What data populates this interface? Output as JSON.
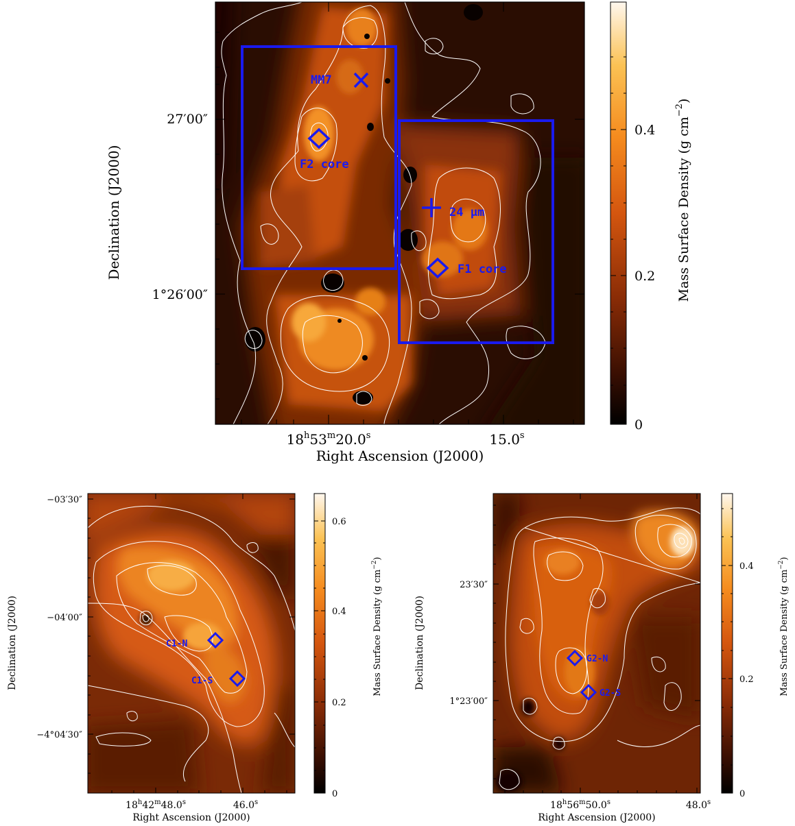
{
  "colors": {
    "annotation": "#1a1aee",
    "contour": "#ffffff",
    "colormap": [
      "#000000",
      "#3a0f02",
      "#8a2c06",
      "#d4560f",
      "#f58b1e",
      "#fbc254",
      "#fff7ee"
    ]
  },
  "chart_data": [
    {
      "type": "heatmap",
      "panel": "top",
      "xlabel": "Right Ascension (J2000)",
      "ylabel": "Declination (J2000)",
      "x_ticks": [
        {
          "label": "18h53m20.0s",
          "parts": [
            "18",
            "h",
            "53",
            "m",
            "20.0",
            "s"
          ]
        },
        {
          "label": "15.0s",
          "parts": [
            "15.0",
            "s"
          ]
        }
      ],
      "y_ticks": [
        "27′00″",
        "1°26′00″"
      ],
      "colorbar": {
        "label": "Mass Surface Density (g cm",
        "label_sup": "−2",
        "label_close": ")",
        "ticks": [
          "0",
          "0.2",
          "0.4"
        ],
        "range": [
          0,
          0.58
        ]
      },
      "annotations": [
        {
          "id": "mm7",
          "label": "MM7",
          "marker": "x"
        },
        {
          "id": "f2",
          "label": "F2 core",
          "marker": "diamond"
        },
        {
          "id": "mir",
          "label": "24 μm",
          "marker": "plus"
        },
        {
          "id": "f1",
          "label": "F1 core",
          "marker": "diamond"
        }
      ],
      "boxes": 2
    },
    {
      "type": "heatmap",
      "panel": "bottom-left",
      "xlabel": "Right Ascension (J2000)",
      "ylabel": "Declination (J2000)",
      "x_ticks": [
        {
          "label": "18h42m48.0s",
          "parts": [
            "18",
            "h",
            "42",
            "m",
            "48.0",
            "s"
          ]
        },
        {
          "label": "46.0s",
          "parts": [
            "46.0",
            "s"
          ]
        }
      ],
      "y_ticks": [
        "−03′30″",
        "−04′00″",
        "−4°04′30″"
      ],
      "colorbar": {
        "label": "Mass Surface Density (g cm",
        "label_sup": "−2",
        "label_close": ")",
        "ticks": [
          "0",
          "0.2",
          "0.4",
          "0.6"
        ],
        "range": [
          0,
          0.66
        ]
      },
      "annotations": [
        {
          "id": "c1n",
          "label": "C1-N",
          "marker": "diamond"
        },
        {
          "id": "c1s",
          "label": "C1-S",
          "marker": "diamond"
        }
      ]
    },
    {
      "type": "heatmap",
      "panel": "bottom-right",
      "xlabel": "Right Ascension (J2000)",
      "ylabel": "Declination (J2000)",
      "x_ticks": [
        {
          "label": "18h56m50.0s",
          "parts": [
            "18",
            "h",
            "56",
            "m",
            "50.0",
            "s"
          ]
        },
        {
          "label": "48.0s",
          "parts": [
            "48.0",
            "s"
          ]
        }
      ],
      "y_ticks": [
        "23′30″",
        "1°23′00″"
      ],
      "colorbar": {
        "label": "Mass Surface Density (g cm",
        "label_sup": "−2",
        "label_close": ")",
        "ticks": [
          "0",
          "0.2",
          "0.4"
        ],
        "range": [
          0,
          0.53
        ]
      },
      "annotations": [
        {
          "id": "g2n",
          "label": "G2-N",
          "marker": "diamond"
        },
        {
          "id": "g2s",
          "label": "G2-S",
          "marker": "diamond"
        }
      ]
    }
  ]
}
